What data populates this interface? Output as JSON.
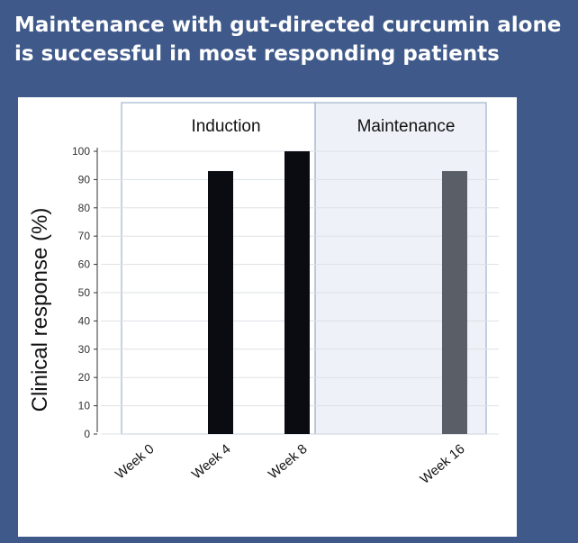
{
  "slide": {
    "title_line1": "Maintenance with gut-directed curcumin alone",
    "title_line2": "is successful in most responding patients"
  },
  "chart_data": {
    "type": "bar",
    "ylabel": "Clinical response (%)",
    "xlabel": "",
    "ylim": [
      0,
      100
    ],
    "yticks": [
      0,
      10,
      20,
      30,
      40,
      50,
      60,
      70,
      80,
      90,
      100
    ],
    "grid": true,
    "phases": [
      {
        "label": "Induction",
        "categories": [
          "Week 0",
          "Week 4",
          "Week 8"
        ]
      },
      {
        "label": "Maintenance",
        "categories": [
          "Week 16"
        ]
      }
    ],
    "categories": [
      "Week 0",
      "Week 4",
      "Week 8",
      "Week 16"
    ],
    "values": [
      0,
      93,
      100,
      93
    ],
    "colors": {
      "induction_bar": "#0b0b12",
      "maintenance_bar": "#5a5f67",
      "maintenance_shade": "#eef2f8",
      "phase_border": "#9fb3cc",
      "grid": "#dde1e6",
      "background": "#3f5a8a"
    }
  }
}
